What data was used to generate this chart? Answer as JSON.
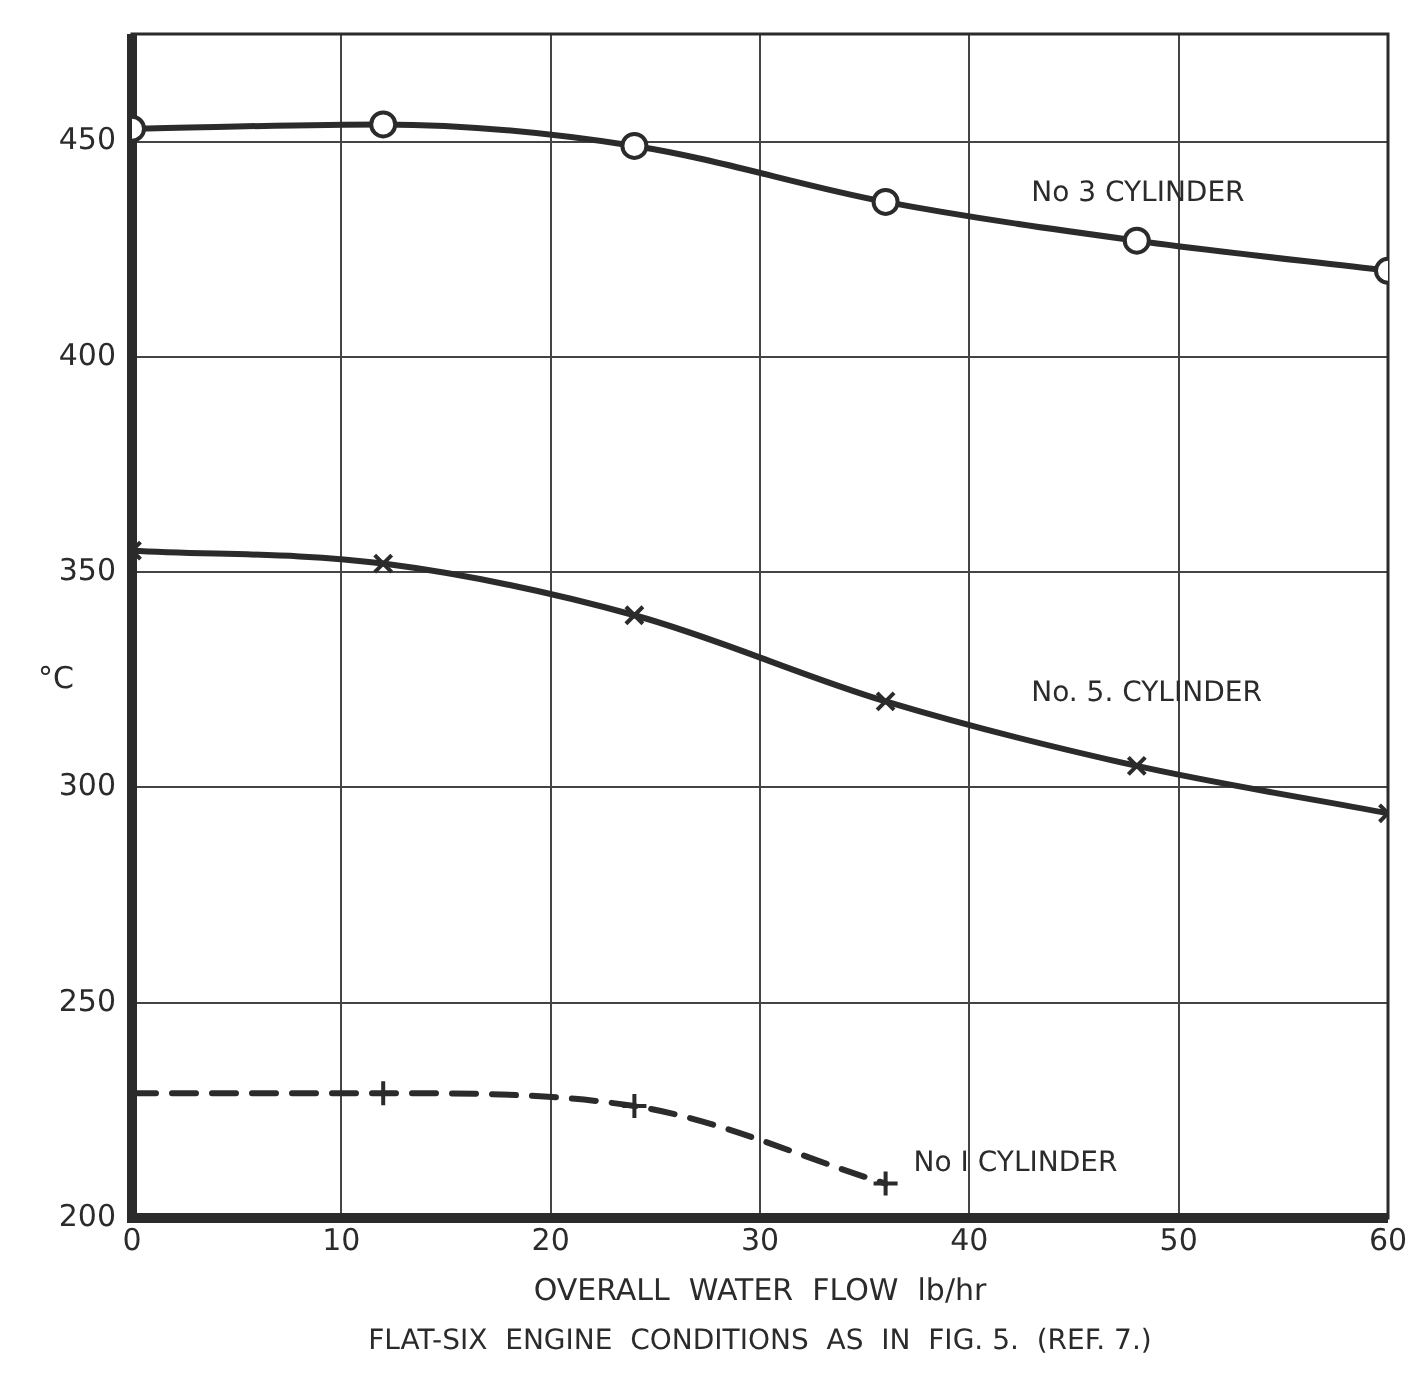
{
  "chart_data": {
    "type": "line",
    "xlabel": "OVERALL  WATER  FLOW  lb/hr",
    "ylabel": "°C",
    "x": [
      0,
      12,
      24,
      36,
      48,
      60
    ],
    "series": [
      {
        "name": "No 3 CYLINDER",
        "color": "#2b2b2b",
        "values": [
          453,
          454,
          449,
          436,
          427,
          420
        ],
        "marker": "circle",
        "line_style": "solid"
      },
      {
        "name": "No. 5. CYLINDER",
        "color": "#2b2b2b",
        "values": [
          355,
          352,
          340,
          320,
          305,
          294
        ],
        "marker": "cross",
        "line_style": "solid"
      },
      {
        "name": "No I CYLINDER",
        "color": "#2b2b2b",
        "values": [
          229,
          229,
          226,
          208,
          null,
          null
        ],
        "marker": "cross",
        "line_style": "dashed"
      }
    ],
    "xlim": [
      0,
      60
    ],
    "xticks": [
      0,
      10,
      20,
      30,
      40,
      50,
      60
    ],
    "ylim": [
      200,
      475
    ],
    "yticks": [
      200,
      250,
      300,
      350,
      400,
      450
    ],
    "grid": true,
    "legend": false,
    "annotations": [
      "FLAT-SIX  ENGINE  CONDITIONS  AS  IN  FIG. 5.  (REF. 7.)"
    ]
  }
}
